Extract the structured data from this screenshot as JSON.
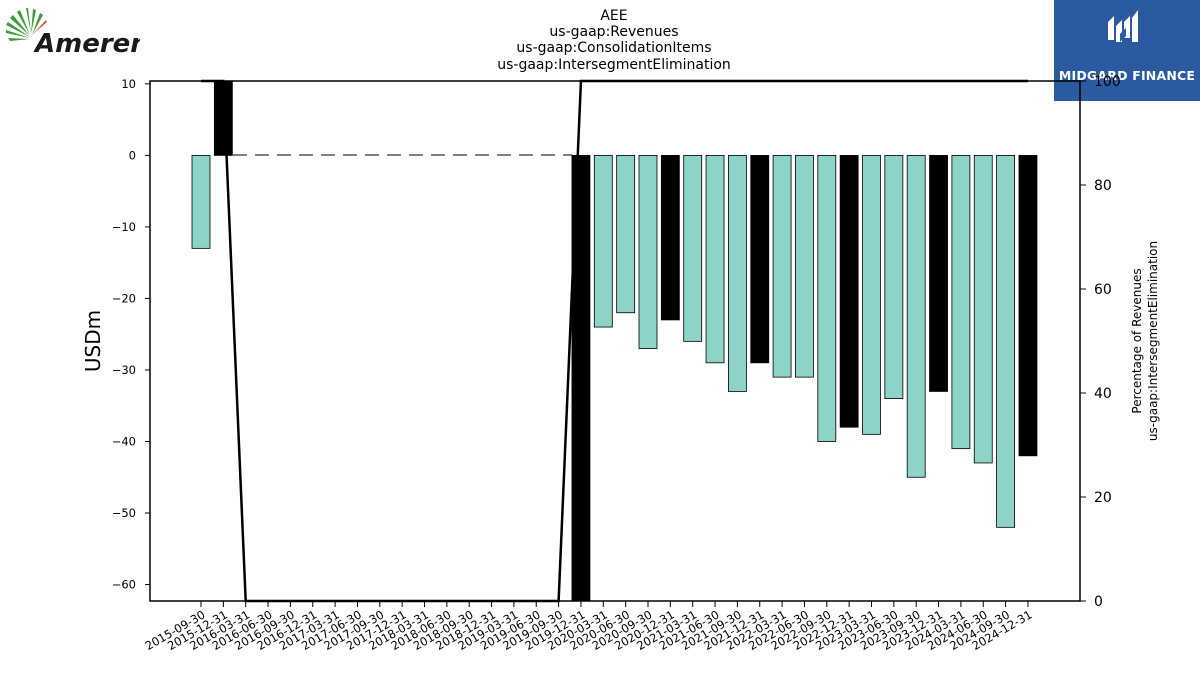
{
  "logos": {
    "left_text": "Ameren",
    "right_text": "MIDGARD FINANCE"
  },
  "chart_data": {
    "type": "bar",
    "title_lines": [
      "AEE",
      "us-gaap:Revenues",
      "us-gaap:ConsolidationItems",
      "us-gaap:IntersegmentElimination"
    ],
    "ylabel": "USDm",
    "y2label_lines": [
      "Percentage of Revenues",
      "us-gaap:IntersegmentElimination"
    ],
    "ylim": [
      -62.3,
      10.4
    ],
    "y2lim": [
      0,
      100
    ],
    "yticks": [
      10,
      0,
      -10,
      -20,
      -30,
      -40,
      -50,
      -60
    ],
    "y2ticks": [
      0,
      20,
      40,
      60,
      80,
      100
    ],
    "categories": [
      "2015-09-30",
      "2015-12-31",
      "2016-03-31",
      "2016-06-30",
      "2016-09-30",
      "2016-12-31",
      "2017-03-31",
      "2017-06-30",
      "2017-09-30",
      "2017-12-31",
      "2018-03-31",
      "2018-06-30",
      "2018-09-30",
      "2018-12-31",
      "2019-03-31",
      "2019-06-30",
      "2019-09-30",
      "2019-12-31",
      "2020-03-31",
      "2020-06-30",
      "2020-09-30",
      "2020-12-31",
      "2021-03-31",
      "2021-06-30",
      "2021-09-30",
      "2021-12-31",
      "2022-03-31",
      "2022-06-30",
      "2022-09-30",
      "2022-12-31",
      "2023-03-31",
      "2023-06-30",
      "2023-09-30",
      "2023-12-31",
      "2024-03-31",
      "2024-06-30",
      "2024-09-30",
      "2024-12-31"
    ],
    "values": [
      -13,
      11,
      null,
      null,
      null,
      null,
      null,
      null,
      null,
      null,
      null,
      null,
      null,
      null,
      null,
      null,
      null,
      -63,
      -24,
      -22,
      -27,
      -23,
      -26,
      -29,
      -33,
      -29,
      -31,
      -31,
      -40,
      -38,
      -39,
      -34,
      -45,
      -33,
      -41,
      -43,
      -52,
      -42
    ],
    "quarter_end": [
      false,
      true,
      false,
      false,
      false,
      false,
      false,
      false,
      false,
      false,
      false,
      false,
      false,
      false,
      false,
      false,
      false,
      true,
      false,
      false,
      false,
      true,
      false,
      false,
      false,
      true,
      false,
      false,
      false,
      true,
      false,
      false,
      false,
      true,
      false,
      false,
      false,
      true
    ],
    "percentage": [
      100,
      100,
      0,
      0,
      0,
      0,
      0,
      0,
      0,
      0,
      0,
      0,
      0,
      0,
      0,
      0,
      0,
      100,
      100,
      100,
      100,
      100,
      100,
      100,
      100,
      100,
      100,
      100,
      100,
      100,
      100,
      100,
      100,
      100,
      100,
      100,
      100,
      100
    ],
    "colors": {
      "quarter": "#8dd3c7",
      "year_end": "#000000",
      "line": "#000000"
    }
  }
}
